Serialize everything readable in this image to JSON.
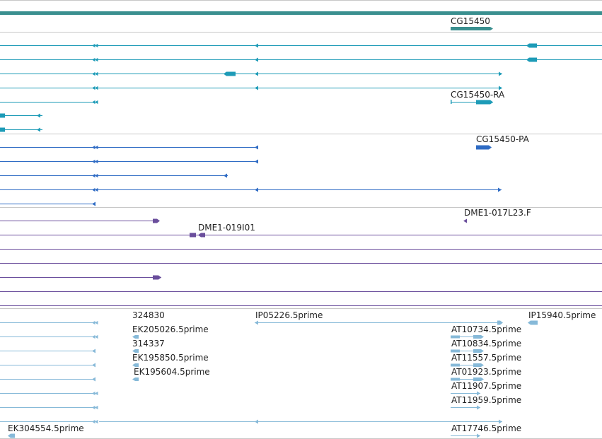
{
  "colors": {
    "background": "#ffffff",
    "separator": "#c8c8c8",
    "gene": "#3a8f8f",
    "transcript": "#1d9bb7",
    "protein": "#2e6bc4",
    "clone": "#6a4e9c",
    "est": "#86b9d8",
    "text": "#222222"
  },
  "tracks": {
    "gene": {
      "labels": [
        {
          "key": "cg15450",
          "text": "CG15450"
        }
      ]
    },
    "transcripts": {
      "labels": [
        {
          "key": "cg15450-ra",
          "text": "CG15450-RA"
        }
      ]
    },
    "proteins": {
      "labels": [
        {
          "key": "cg15450-pa",
          "text": "CG15450-PA"
        }
      ]
    },
    "clones": {
      "labels": [
        {
          "key": "dme1-017l23-f",
          "text": "DME1-017L23.F"
        },
        {
          "key": "dme1-019i01",
          "text": "DME1-019I01"
        }
      ]
    },
    "ests": {
      "labels": [
        {
          "key": "324830",
          "text": "324830"
        },
        {
          "key": "ip05226-5prime",
          "text": "IP05226.5prime"
        },
        {
          "key": "ip15940-5prime",
          "text": "IP15940.5prime"
        },
        {
          "key": "ek205026-5prime",
          "text": "EK205026.5prime"
        },
        {
          "key": "at10734-5prime",
          "text": "AT10734.5prime"
        },
        {
          "key": "314337",
          "text": "314337"
        },
        {
          "key": "at10834-5prime",
          "text": "AT10834.5prime"
        },
        {
          "key": "ek195850-5prime",
          "text": "EK195850.5prime"
        },
        {
          "key": "at11557-5prime",
          "text": "AT11557.5prime"
        },
        {
          "key": "ek195604-5prime",
          "text": "EK195604.5prime"
        },
        {
          "key": "at01923-5prime",
          "text": "AT01923.5prime"
        },
        {
          "key": "at11907-5prime",
          "text": "AT11907.5prime"
        },
        {
          "key": "at11959-5prime",
          "text": "AT11959.5prime"
        },
        {
          "key": "ek304554-5prime",
          "text": "EK304554.5prime"
        },
        {
          "key": "at17746-5prime",
          "text": "AT17746.5prime"
        }
      ]
    }
  }
}
